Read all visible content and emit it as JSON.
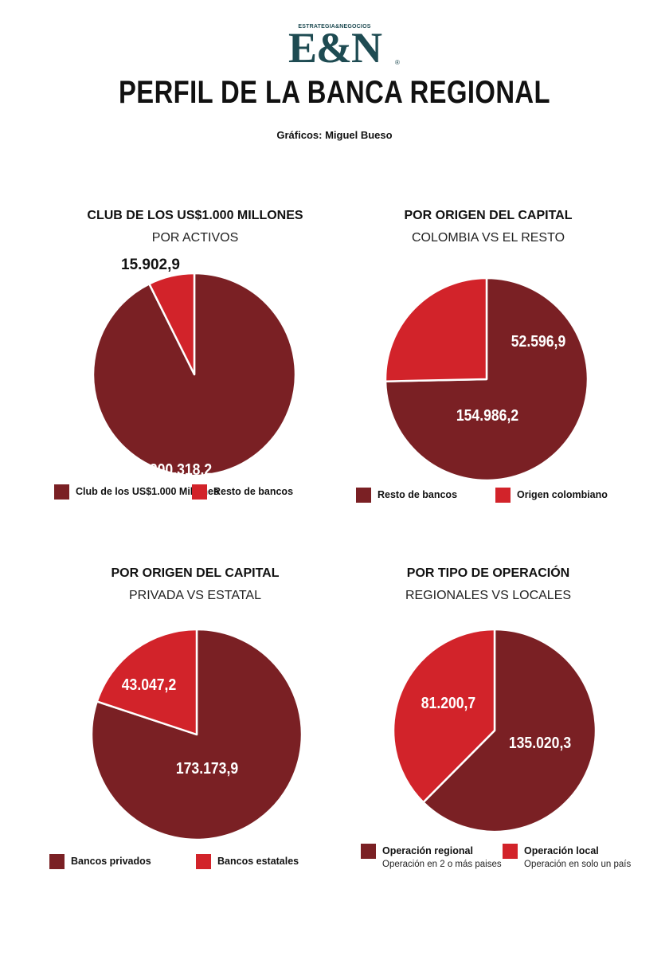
{
  "header": {
    "logo_top": "ESTRATEGIA&NEGOCIOS",
    "logo_main": "E&N",
    "logo_reg": "®",
    "title": "PERFIL DE LA BANCA REGIONAL",
    "credit": "Gráficos: Miguel Bueso"
  },
  "colors": {
    "dark": "#7a2024",
    "bright": "#d2232a"
  },
  "chart_data": [
    {
      "type": "pie",
      "title": "CLUB DE LOS US$1.000 MILLONES",
      "subtitle": "POR ACTIVOS",
      "slices": [
        {
          "label": "Club de los US$1.000 Millones",
          "value": 200318.2,
          "display": "200.318,2",
          "color": "#7a2024"
        },
        {
          "label": "Resto de bancos",
          "value": 15902.9,
          "display": "15.902,9",
          "color": "#d2232a"
        }
      ]
    },
    {
      "type": "pie",
      "title": "POR ORIGEN DEL CAPITAL",
      "subtitle": "COLOMBIA VS EL RESTO",
      "slices": [
        {
          "label": "Resto de bancos",
          "value": 154986.2,
          "display": "154.986,2",
          "color": "#7a2024"
        },
        {
          "label": "Origen colombiano",
          "value": 52596.9,
          "display": "52.596,9",
          "color": "#d2232a"
        }
      ]
    },
    {
      "type": "pie",
      "title": "POR ORIGEN DEL CAPITAL",
      "subtitle": "PRIVADA VS ESTATAL",
      "slices": [
        {
          "label": "Bancos privados",
          "value": 173173.9,
          "display": "173.173,9",
          "color": "#7a2024"
        },
        {
          "label": "Bancos estatales",
          "value": 43047.2,
          "display": "43.047,2",
          "color": "#d2232a"
        }
      ]
    },
    {
      "type": "pie",
      "title": "POR TIPO DE OPERACIÓN",
      "subtitle": "REGIONALES VS LOCALES",
      "slices": [
        {
          "label": "Operación regional",
          "note": "Operación en 2 o más paises",
          "value": 135020.3,
          "display": "135.020,3",
          "color": "#7a2024"
        },
        {
          "label": "Operación local",
          "note": "Operación en solo un país",
          "value": 81200.7,
          "display": "81.200,7",
          "color": "#d2232a"
        }
      ]
    }
  ]
}
